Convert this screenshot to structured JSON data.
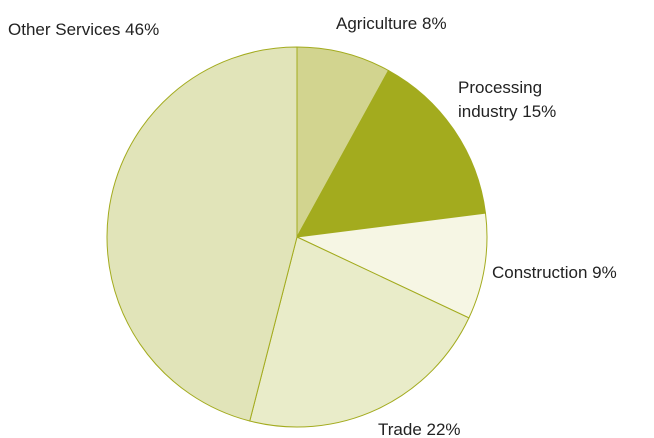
{
  "chart_data": {
    "type": "pie",
    "categories": [
      "Agriculture",
      "Processing industry",
      "Construction",
      "Trade",
      "Other Services"
    ],
    "values": [
      8,
      15,
      9,
      22,
      46
    ],
    "value_labels": [
      "8%",
      "15%",
      "9%",
      "22%",
      "46%"
    ],
    "colors": [
      "#d2d48f",
      "#a3ab1e",
      "#f6f6e4",
      "#e9ecc9",
      "#e1e4b9"
    ],
    "edge_color": "#a3ab1e"
  }
}
